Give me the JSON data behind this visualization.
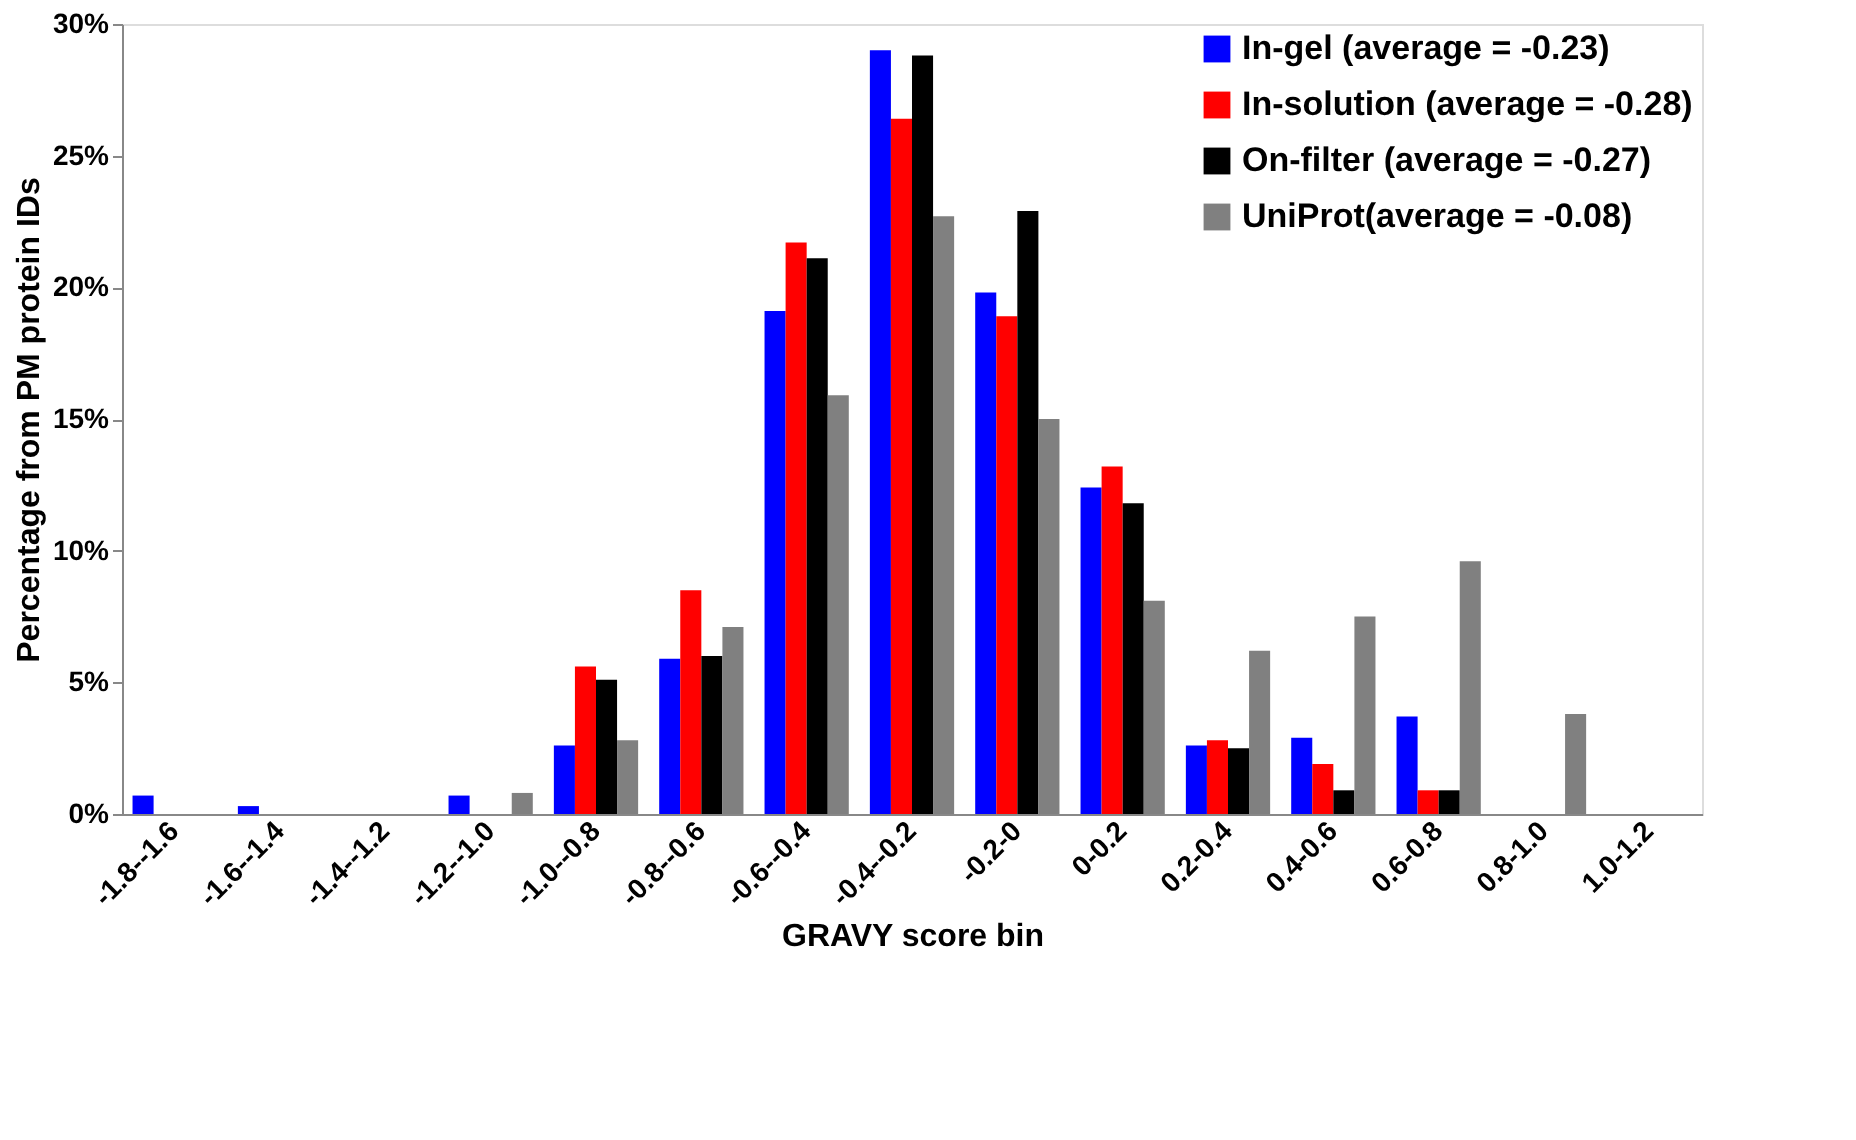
{
  "chart_data": {
    "type": "bar",
    "xlabel": "GRAVY score bin",
    "ylabel": "Percentage from PM protein IDs",
    "categories": [
      "-1.8--1.6",
      "-1.6--1.4",
      "-1.4--1.2",
      "-1.2--1.0",
      "-1.0--0.8",
      "-0.8--0.6",
      "-0.6--0.4",
      "-0.4--0.2",
      "-0.2-0",
      "0-0.2",
      "0.2-0.4",
      "0.4-0.6",
      "0.6-0.8",
      "0.8-1.0",
      "1.0-1.2"
    ],
    "series": [
      {
        "name": "In-gel (average = -0.23)",
        "color": "#0000ff",
        "values": [
          0.7,
          0.3,
          0,
          0.7,
          2.6,
          5.9,
          19.1,
          29.0,
          19.8,
          12.4,
          2.6,
          2.9,
          3.7,
          0,
          0
        ]
      },
      {
        "name": "In-solution (average = -0.28)",
        "color": "#ff0000",
        "values": [
          0,
          0,
          0,
          0,
          5.6,
          8.5,
          21.7,
          26.4,
          18.9,
          13.2,
          2.8,
          1.9,
          0.9,
          0,
          0
        ]
      },
      {
        "name": "On-filter (average = -0.27)",
        "color": "#000000",
        "values": [
          0,
          0,
          0,
          0,
          5.1,
          6.0,
          21.1,
          28.8,
          22.9,
          11.8,
          2.5,
          0.9,
          0.9,
          0,
          0
        ]
      },
      {
        "name": "UniProt(average = -0.08)",
        "color": "#808080",
        "values": [
          0,
          0,
          0,
          0.8,
          2.8,
          7.1,
          15.9,
          22.7,
          15.0,
          8.1,
          6.2,
          7.5,
          9.6,
          3.8,
          0
        ]
      }
    ],
    "ylim": [
      0,
      30
    ],
    "yticks": [
      {
        "value": 0,
        "label": "0%"
      },
      {
        "value": 5,
        "label": "5%"
      },
      {
        "value": 10,
        "label": "10%"
      },
      {
        "value": 15,
        "label": "15%"
      },
      {
        "value": 20,
        "label": "20%"
      },
      {
        "value": 25,
        "label": "25%"
      },
      {
        "value": 30,
        "label": "30%"
      }
    ],
    "grid": false,
    "legend": "top right"
  }
}
